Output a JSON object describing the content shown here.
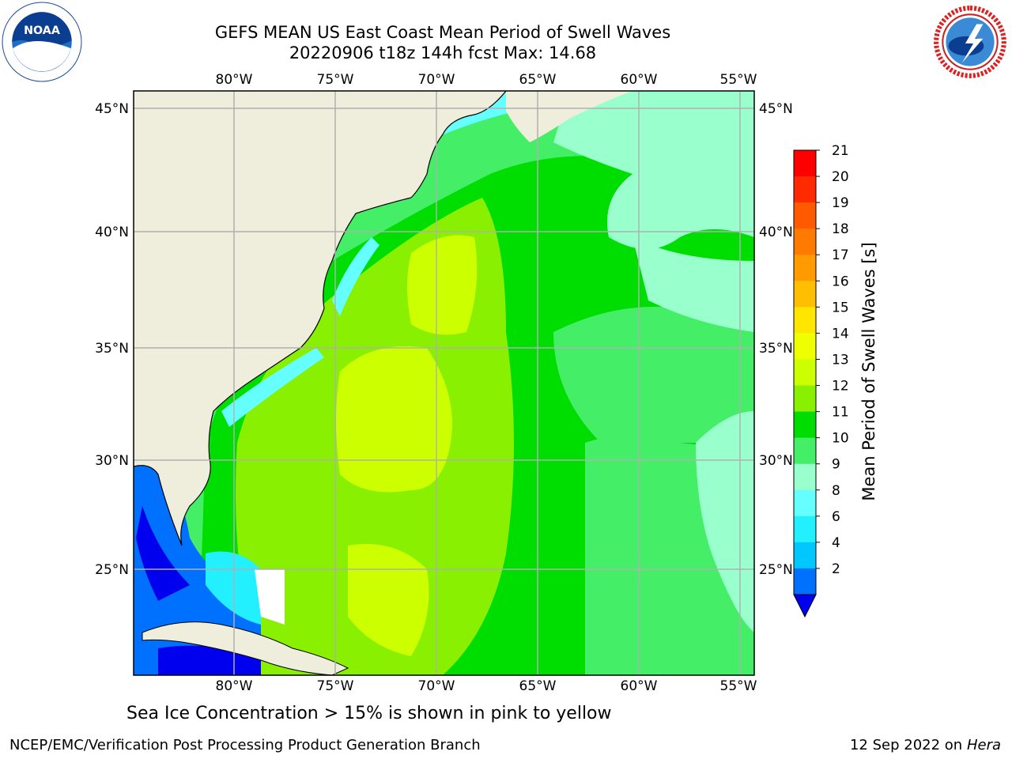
{
  "header": {
    "title_line1": "GEFS MEAN US East Coast Mean Period of Swell Waves",
    "title_line2": "20220906 t18z 144h fcst   Max: 14.68"
  },
  "logos": {
    "left": {
      "name": "noaa-logo",
      "text": "NOAA"
    },
    "right": {
      "name": "nws-logo",
      "text": "NATIONAL WEATHER SERVICE"
    }
  },
  "map": {
    "lon_ticks": [
      "80°W",
      "75°W",
      "70°W",
      "65°W",
      "60°W",
      "55°W"
    ],
    "lat_ticks": [
      "45°N",
      "40°N",
      "35°N",
      "30°N",
      "25°N"
    ],
    "land_color": "#efeedd",
    "grid_color": "#b0b0b0"
  },
  "colorbar": {
    "label": "Mean Period of Swell Waves [s]",
    "ticks": [
      "21",
      "20",
      "19",
      "18",
      "17",
      "16",
      "15",
      "14",
      "13",
      "12",
      "11",
      "10",
      "9",
      "8",
      "6",
      "4",
      "2"
    ],
    "colors": [
      "#ff0000",
      "#ff2a00",
      "#ff5a00",
      "#ff7a00",
      "#ff9a00",
      "#ffbe00",
      "#ffe600",
      "#f0ff00",
      "#ccff00",
      "#88f000",
      "#00dd00",
      "#44ee66",
      "#99ffcc",
      "#66ffff",
      "#22f0ff",
      "#00c8ff",
      "#0070ff"
    ],
    "under_color": "#0000ee"
  },
  "footer": {
    "ice_note": "Sea Ice Concentration > 15% is shown in pink to yellow",
    "left": "NCEP/EMC/Verification Post Processing Product Generation Branch",
    "right_date": "12 Sep 2022 on",
    "right_host": "Hera"
  }
}
